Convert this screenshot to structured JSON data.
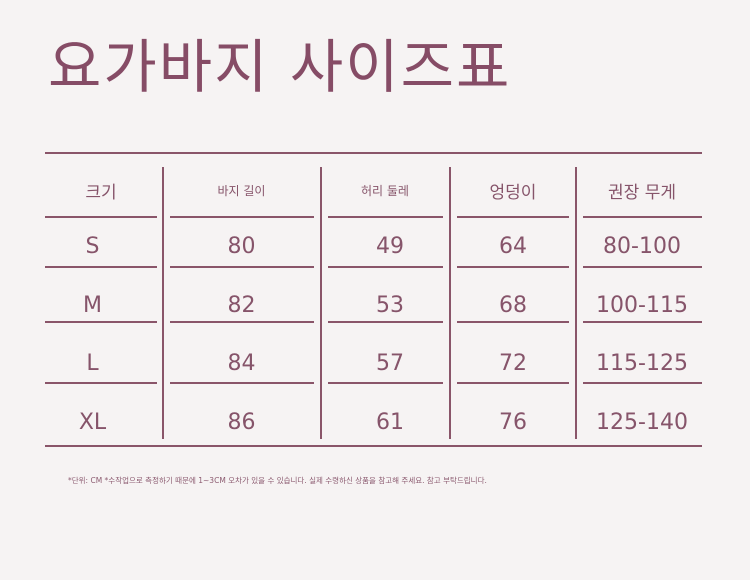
{
  "title": "요가바지 사이즈표",
  "table": {
    "headers": [
      "크기",
      "바지 길이",
      "허리 둘레",
      "엉덩이",
      "권장 무게"
    ],
    "rows": [
      [
        "S",
        "80",
        "49",
        "64",
        "80-100"
      ],
      [
        "M",
        "82",
        "53",
        "68",
        "100-115"
      ],
      [
        "L",
        "84",
        "57",
        "72",
        "115-125"
      ],
      [
        "XL",
        "86",
        "61",
        "76",
        "125-140"
      ]
    ]
  },
  "footnote": "*단위: CM *수작업으로 측정하기 때문에 1~3CM 오차가 있을 수 있습니다. 실제 수령하신 상품을 참고해 주세요. 참고 부탁드립니다.",
  "colors": {
    "accent": "#864c66",
    "background": "#f6f3f3"
  }
}
